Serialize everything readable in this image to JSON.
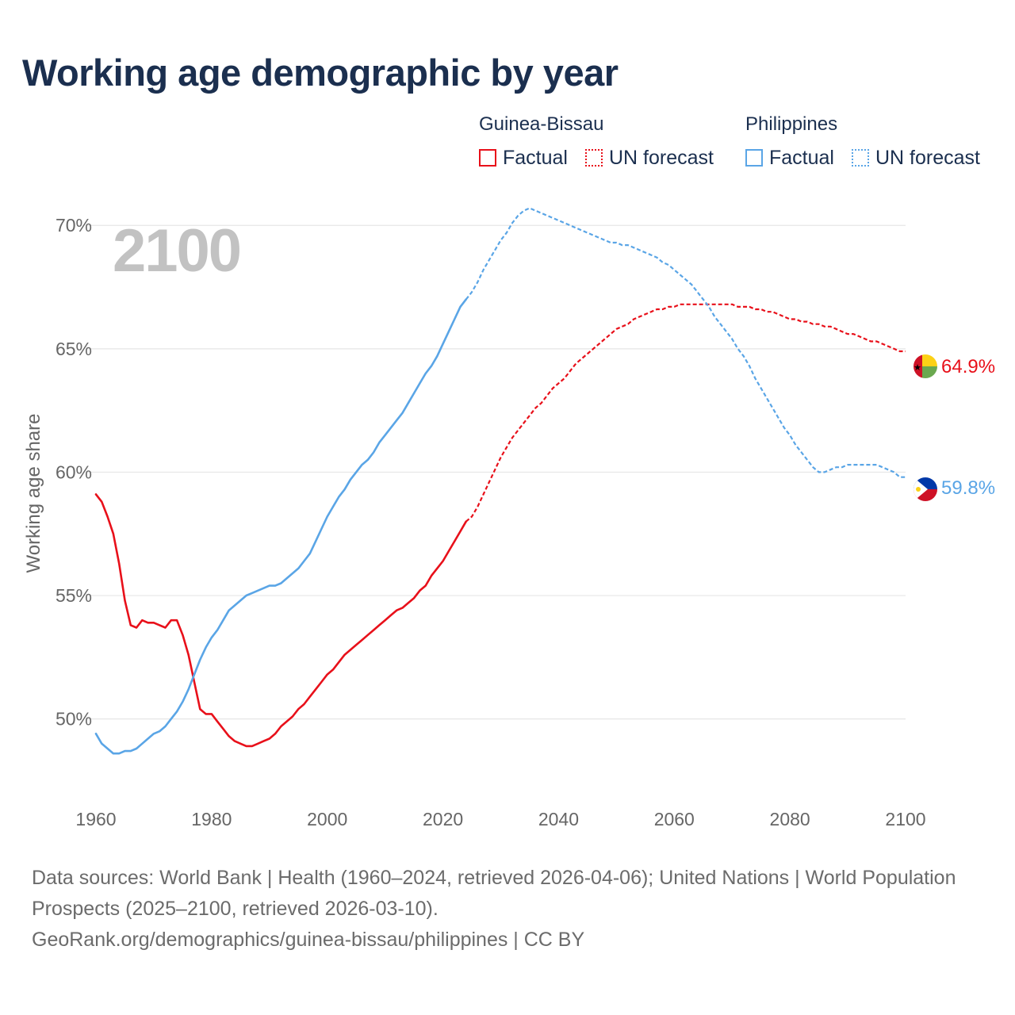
{
  "title": "Working age demographic by year",
  "legend": {
    "groups": [
      {
        "country": "Guinea-Bissau",
        "factual": "Factual",
        "forecast": "UN forecast",
        "color": "#e8101a"
      },
      {
        "country": "Philippines",
        "factual": "Factual",
        "forecast": "UN forecast",
        "color": "#5aa5e6"
      }
    ]
  },
  "year_watermark": "2100",
  "footer": {
    "sources": "Data sources: World Bank | Health (1960–2024, retrieved 2026-04-06); United Nations | World Population Prospects (2025–2100, retrieved 2026-03-10).",
    "credit": "GeoRank.org/demographics/guinea-bissau/philippines | CC BY"
  },
  "chart_data": {
    "type": "line",
    "title": "Working age demographic by year",
    "xlabel": "",
    "ylabel": "Working age share",
    "xlim": [
      1960,
      2100
    ],
    "ylim": [
      47,
      72
    ],
    "x_ticks": [
      1960,
      1980,
      2000,
      2020,
      2040,
      2060,
      2080,
      2100
    ],
    "x_tick_labels": [
      "1960",
      "1980",
      "2000",
      "2020",
      "2040",
      "2060",
      "2080",
      "2100"
    ],
    "y_ticks": [
      50,
      55,
      60,
      65,
      70
    ],
    "y_tick_labels": [
      "50%",
      "55%",
      "60%",
      "65%",
      "70%"
    ],
    "grid": true,
    "factual_end_year": 2024,
    "series": [
      {
        "name": "Guinea-Bissau",
        "color": "#e8101a",
        "end_label": "64.9%",
        "flag": "guinea-bissau-flag",
        "points": [
          [
            1960,
            59.1
          ],
          [
            1961,
            58.8
          ],
          [
            1962,
            58.2
          ],
          [
            1963,
            57.5
          ],
          [
            1964,
            56.3
          ],
          [
            1965,
            54.8
          ],
          [
            1966,
            53.8
          ],
          [
            1967,
            53.7
          ],
          [
            1968,
            54.0
          ],
          [
            1969,
            53.9
          ],
          [
            1970,
            53.9
          ],
          [
            1971,
            53.8
          ],
          [
            1972,
            53.7
          ],
          [
            1973,
            54.0
          ],
          [
            1974,
            54.0
          ],
          [
            1975,
            53.4
          ],
          [
            1976,
            52.6
          ],
          [
            1977,
            51.5
          ],
          [
            1978,
            50.4
          ],
          [
            1979,
            50.2
          ],
          [
            1980,
            50.2
          ],
          [
            1981,
            49.9
          ],
          [
            1982,
            49.6
          ],
          [
            1983,
            49.3
          ],
          [
            1984,
            49.1
          ],
          [
            1985,
            49.0
          ],
          [
            1986,
            48.9
          ],
          [
            1987,
            48.9
          ],
          [
            1988,
            49.0
          ],
          [
            1989,
            49.1
          ],
          [
            1990,
            49.2
          ],
          [
            1991,
            49.4
          ],
          [
            1992,
            49.7
          ],
          [
            1993,
            49.9
          ],
          [
            1994,
            50.1
          ],
          [
            1995,
            50.4
          ],
          [
            1996,
            50.6
          ],
          [
            1997,
            50.9
          ],
          [
            1998,
            51.2
          ],
          [
            1999,
            51.5
          ],
          [
            2000,
            51.8
          ],
          [
            2001,
            52.0
          ],
          [
            2002,
            52.3
          ],
          [
            2003,
            52.6
          ],
          [
            2004,
            52.8
          ],
          [
            2005,
            53.0
          ],
          [
            2006,
            53.2
          ],
          [
            2007,
            53.4
          ],
          [
            2008,
            53.6
          ],
          [
            2009,
            53.8
          ],
          [
            2010,
            54.0
          ],
          [
            2011,
            54.2
          ],
          [
            2012,
            54.4
          ],
          [
            2013,
            54.5
          ],
          [
            2014,
            54.7
          ],
          [
            2015,
            54.9
          ],
          [
            2016,
            55.2
          ],
          [
            2017,
            55.4
          ],
          [
            2018,
            55.8
          ],
          [
            2019,
            56.1
          ],
          [
            2020,
            56.4
          ],
          [
            2021,
            56.8
          ],
          [
            2022,
            57.2
          ],
          [
            2023,
            57.6
          ],
          [
            2024,
            58.0
          ],
          [
            2025,
            58.2
          ],
          [
            2026,
            58.6
          ],
          [
            2027,
            59.1
          ],
          [
            2028,
            59.6
          ],
          [
            2029,
            60.1
          ],
          [
            2030,
            60.6
          ],
          [
            2031,
            61.0
          ],
          [
            2032,
            61.4
          ],
          [
            2033,
            61.7
          ],
          [
            2034,
            62.0
          ],
          [
            2035,
            62.3
          ],
          [
            2036,
            62.6
          ],
          [
            2037,
            62.8
          ],
          [
            2038,
            63.1
          ],
          [
            2039,
            63.4
          ],
          [
            2040,
            63.6
          ],
          [
            2041,
            63.8
          ],
          [
            2042,
            64.1
          ],
          [
            2043,
            64.4
          ],
          [
            2044,
            64.6
          ],
          [
            2045,
            64.8
          ],
          [
            2046,
            65.0
          ],
          [
            2047,
            65.2
          ],
          [
            2048,
            65.4
          ],
          [
            2049,
            65.6
          ],
          [
            2050,
            65.8
          ],
          [
            2051,
            65.9
          ],
          [
            2052,
            66.0
          ],
          [
            2053,
            66.2
          ],
          [
            2054,
            66.3
          ],
          [
            2055,
            66.4
          ],
          [
            2056,
            66.5
          ],
          [
            2057,
            66.6
          ],
          [
            2058,
            66.6
          ],
          [
            2059,
            66.7
          ],
          [
            2060,
            66.7
          ],
          [
            2061,
            66.8
          ],
          [
            2062,
            66.8
          ],
          [
            2063,
            66.8
          ],
          [
            2064,
            66.8
          ],
          [
            2065,
            66.8
          ],
          [
            2066,
            66.8
          ],
          [
            2067,
            66.8
          ],
          [
            2068,
            66.8
          ],
          [
            2069,
            66.8
          ],
          [
            2070,
            66.8
          ],
          [
            2071,
            66.7
          ],
          [
            2072,
            66.7
          ],
          [
            2073,
            66.7
          ],
          [
            2074,
            66.6
          ],
          [
            2075,
            66.6
          ],
          [
            2076,
            66.5
          ],
          [
            2077,
            66.5
          ],
          [
            2078,
            66.4
          ],
          [
            2079,
            66.3
          ],
          [
            2080,
            66.2
          ],
          [
            2081,
            66.2
          ],
          [
            2082,
            66.1
          ],
          [
            2083,
            66.1
          ],
          [
            2084,
            66.0
          ],
          [
            2085,
            66.0
          ],
          [
            2086,
            65.9
          ],
          [
            2087,
            65.9
          ],
          [
            2088,
            65.8
          ],
          [
            2089,
            65.7
          ],
          [
            2090,
            65.6
          ],
          [
            2091,
            65.6
          ],
          [
            2092,
            65.5
          ],
          [
            2093,
            65.4
          ],
          [
            2094,
            65.3
          ],
          [
            2095,
            65.3
          ],
          [
            2096,
            65.2
          ],
          [
            2097,
            65.1
          ],
          [
            2098,
            65.0
          ],
          [
            2099,
            64.9
          ],
          [
            2100,
            64.9
          ]
        ]
      },
      {
        "name": "Philippines",
        "color": "#5aa5e6",
        "end_label": "59.8%",
        "flag": "philippines-flag",
        "points": [
          [
            1960,
            49.4
          ],
          [
            1961,
            49.0
          ],
          [
            1962,
            48.8
          ],
          [
            1963,
            48.6
          ],
          [
            1964,
            48.6
          ],
          [
            1965,
            48.7
          ],
          [
            1966,
            48.7
          ],
          [
            1967,
            48.8
          ],
          [
            1968,
            49.0
          ],
          [
            1969,
            49.2
          ],
          [
            1970,
            49.4
          ],
          [
            1971,
            49.5
          ],
          [
            1972,
            49.7
          ],
          [
            1973,
            50.0
          ],
          [
            1974,
            50.3
          ],
          [
            1975,
            50.7
          ],
          [
            1976,
            51.2
          ],
          [
            1977,
            51.8
          ],
          [
            1978,
            52.4
          ],
          [
            1979,
            52.9
          ],
          [
            1980,
            53.3
          ],
          [
            1981,
            53.6
          ],
          [
            1982,
            54.0
          ],
          [
            1983,
            54.4
          ],
          [
            1984,
            54.6
          ],
          [
            1985,
            54.8
          ],
          [
            1986,
            55.0
          ],
          [
            1987,
            55.1
          ],
          [
            1988,
            55.2
          ],
          [
            1989,
            55.3
          ],
          [
            1990,
            55.4
          ],
          [
            1991,
            55.4
          ],
          [
            1992,
            55.5
          ],
          [
            1993,
            55.7
          ],
          [
            1994,
            55.9
          ],
          [
            1995,
            56.1
          ],
          [
            1996,
            56.4
          ],
          [
            1997,
            56.7
          ],
          [
            1998,
            57.2
          ],
          [
            1999,
            57.7
          ],
          [
            2000,
            58.2
          ],
          [
            2001,
            58.6
          ],
          [
            2002,
            59.0
          ],
          [
            2003,
            59.3
          ],
          [
            2004,
            59.7
          ],
          [
            2005,
            60.0
          ],
          [
            2006,
            60.3
          ],
          [
            2007,
            60.5
          ],
          [
            2008,
            60.8
          ],
          [
            2009,
            61.2
          ],
          [
            2010,
            61.5
          ],
          [
            2011,
            61.8
          ],
          [
            2012,
            62.1
          ],
          [
            2013,
            62.4
          ],
          [
            2014,
            62.8
          ],
          [
            2015,
            63.2
          ],
          [
            2016,
            63.6
          ],
          [
            2017,
            64.0
          ],
          [
            2018,
            64.3
          ],
          [
            2019,
            64.7
          ],
          [
            2020,
            65.2
          ],
          [
            2021,
            65.7
          ],
          [
            2022,
            66.2
          ],
          [
            2023,
            66.7
          ],
          [
            2024,
            67.0
          ],
          [
            2025,
            67.3
          ],
          [
            2026,
            67.7
          ],
          [
            2027,
            68.2
          ],
          [
            2028,
            68.6
          ],
          [
            2029,
            69.0
          ],
          [
            2030,
            69.4
          ],
          [
            2031,
            69.7
          ],
          [
            2032,
            70.1
          ],
          [
            2033,
            70.4
          ],
          [
            2034,
            70.6
          ],
          [
            2035,
            70.7
          ],
          [
            2036,
            70.6
          ],
          [
            2037,
            70.5
          ],
          [
            2038,
            70.4
          ],
          [
            2039,
            70.3
          ],
          [
            2040,
            70.2
          ],
          [
            2041,
            70.1
          ],
          [
            2042,
            70.0
          ],
          [
            2043,
            69.9
          ],
          [
            2044,
            69.8
          ],
          [
            2045,
            69.7
          ],
          [
            2046,
            69.6
          ],
          [
            2047,
            69.5
          ],
          [
            2048,
            69.4
          ],
          [
            2049,
            69.3
          ],
          [
            2050,
            69.3
          ],
          [
            2051,
            69.2
          ],
          [
            2052,
            69.2
          ],
          [
            2053,
            69.1
          ],
          [
            2054,
            69.0
          ],
          [
            2055,
            68.9
          ],
          [
            2056,
            68.8
          ],
          [
            2057,
            68.7
          ],
          [
            2058,
            68.5
          ],
          [
            2059,
            68.4
          ],
          [
            2060,
            68.2
          ],
          [
            2061,
            68.0
          ],
          [
            2062,
            67.8
          ],
          [
            2063,
            67.6
          ],
          [
            2064,
            67.3
          ],
          [
            2065,
            67.0
          ],
          [
            2066,
            66.7
          ],
          [
            2067,
            66.3
          ],
          [
            2068,
            66.0
          ],
          [
            2069,
            65.7
          ],
          [
            2070,
            65.4
          ],
          [
            2071,
            65.0
          ],
          [
            2072,
            64.7
          ],
          [
            2073,
            64.3
          ],
          [
            2074,
            63.8
          ],
          [
            2075,
            63.4
          ],
          [
            2076,
            63.0
          ],
          [
            2077,
            62.6
          ],
          [
            2078,
            62.2
          ],
          [
            2079,
            61.8
          ],
          [
            2080,
            61.5
          ],
          [
            2081,
            61.1
          ],
          [
            2082,
            60.8
          ],
          [
            2083,
            60.5
          ],
          [
            2084,
            60.2
          ],
          [
            2085,
            60.0
          ],
          [
            2086,
            60.0
          ],
          [
            2087,
            60.1
          ],
          [
            2088,
            60.2
          ],
          [
            2089,
            60.2
          ],
          [
            2090,
            60.3
          ],
          [
            2091,
            60.3
          ],
          [
            2092,
            60.3
          ],
          [
            2093,
            60.3
          ],
          [
            2094,
            60.3
          ],
          [
            2095,
            60.3
          ],
          [
            2096,
            60.2
          ],
          [
            2097,
            60.1
          ],
          [
            2098,
            60.0
          ],
          [
            2099,
            59.8
          ],
          [
            2100,
            59.8
          ]
        ]
      }
    ]
  }
}
